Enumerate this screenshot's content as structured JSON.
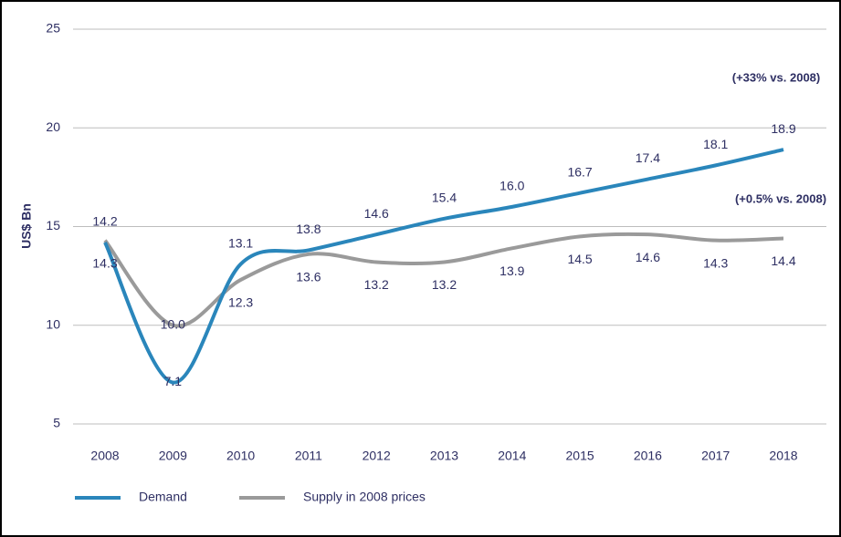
{
  "chart_data": {
    "type": "line",
    "y_label": "US$ Bn",
    "categories": [
      "2008",
      "2009",
      "2010",
      "2011",
      "2012",
      "2013",
      "2014",
      "2015",
      "2016",
      "2017",
      "2018"
    ],
    "series": [
      {
        "name": "Demand",
        "color": "#2a86bb",
        "values": [
          14.2,
          7.1,
          13.1,
          13.8,
          14.6,
          15.4,
          16.0,
          16.7,
          17.4,
          18.1,
          18.9
        ],
        "value_labels": [
          "14.2",
          "7.1",
          "13.1",
          "13.8",
          "14.6",
          "15.4",
          "16.0",
          "16.7",
          "17.4",
          "18.1",
          "18.9"
        ]
      },
      {
        "name": "Supply in 2008 prices",
        "color": "#9a9a9a",
        "values": [
          14.3,
          10.0,
          12.3,
          13.6,
          13.2,
          13.2,
          13.9,
          14.5,
          14.6,
          14.3,
          14.4
        ],
        "value_labels": [
          "14.3",
          "10.0",
          "12.3",
          "13.6",
          "13.2",
          "13.2",
          "13.9",
          "14.5",
          "14.6",
          "14.3",
          "14.4"
        ]
      }
    ],
    "annotations": [
      "(+33% vs. 2008)",
      "(+0.5% vs. 2008)"
    ],
    "ylim": [
      5,
      25
    ],
    "yticks": [
      5,
      10,
      15,
      20,
      25
    ],
    "grid": true
  }
}
